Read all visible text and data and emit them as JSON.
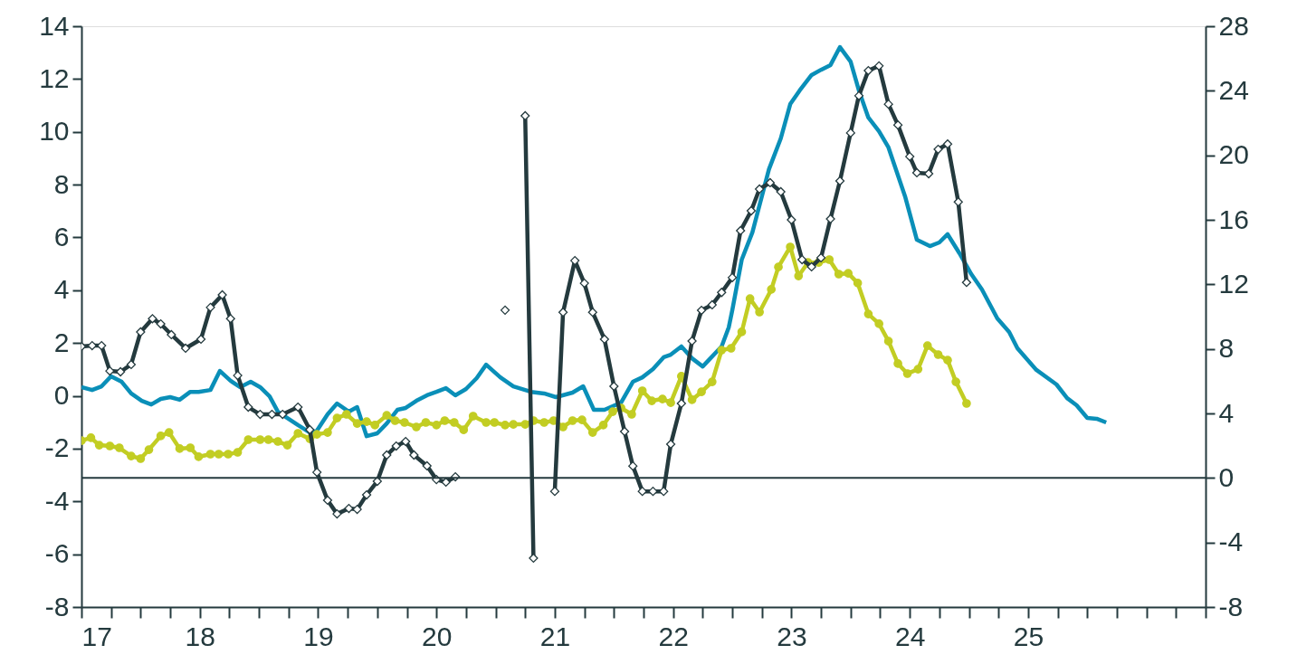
{
  "chart_data": {
    "type": "line",
    "xlim": [
      17,
      26.5
    ],
    "xticks": [
      17,
      {
        "value": 17.25,
        "label": null
      },
      {
        "value": 17.5,
        "label": null
      },
      {
        "value": 17.75,
        "label": null
      },
      18,
      {
        "value": 18.25,
        "label": null
      },
      {
        "value": 18.5,
        "label": null
      },
      {
        "value": 18.75,
        "label": null
      },
      19,
      {
        "value": 19.25,
        "label": null
      },
      {
        "value": 19.5,
        "label": null
      },
      {
        "value": 19.75,
        "label": null
      },
      20,
      {
        "value": 20.25,
        "label": null
      },
      {
        "value": 20.5,
        "label": null
      },
      {
        "value": 20.75,
        "label": null
      },
      21,
      {
        "value": 21.25,
        "label": null
      },
      {
        "value": 21.5,
        "label": null
      },
      {
        "value": 21.75,
        "label": null
      },
      22,
      {
        "value": 22.25,
        "label": null
      },
      {
        "value": 22.5,
        "label": null
      },
      {
        "value": 22.75,
        "label": null
      },
      23,
      {
        "value": 23.25,
        "label": null
      },
      {
        "value": 23.5,
        "label": null
      },
      {
        "value": 23.75,
        "label": null
      },
      24,
      {
        "value": 24.25,
        "label": null
      },
      {
        "value": 24.5,
        "label": null
      },
      {
        "value": 24.75,
        "label": null
      },
      25,
      {
        "value": 25.25,
        "label": null
      },
      {
        "value": 25.5,
        "label": null
      },
      {
        "value": 25.75,
        "label": null
      },
      {
        "value": 26,
        "label": null
      },
      {
        "value": 26.25,
        "label": null
      },
      {
        "value": 26.5,
        "label": null
      }
    ],
    "ylim": [
      -8,
      14
    ],
    "yticks": [
      -8,
      -6,
      -4,
      -2,
      0,
      2,
      4,
      6,
      8,
      10,
      12,
      14
    ],
    "y2lim": [
      -8,
      28
    ],
    "y2ticks": [
      -8,
      -4,
      0,
      4,
      8,
      12,
      16,
      20,
      24,
      28
    ],
    "grid": false,
    "line_style": "solid",
    "ref_lines": [
      {
        "axis": "y2",
        "value": 0,
        "color": "#243a3e"
      }
    ],
    "series": [
      {
        "color": "#0a8fb8",
        "marker": "none",
        "x": [
          17.0,
          17.09,
          17.17,
          17.25,
          17.34,
          17.42,
          17.51,
          17.59,
          17.67,
          17.75,
          17.83,
          17.92,
          17.99,
          18.09,
          18.17,
          18.26,
          18.34,
          18.43,
          18.51,
          18.59,
          18.66,
          18.74,
          18.83,
          18.93,
          18.99,
          19.08,
          19.16,
          19.26,
          19.33,
          19.41,
          19.5,
          19.58,
          19.67,
          19.74,
          19.83,
          19.92,
          20.0,
          20.08,
          20.16,
          20.25,
          20.34,
          20.42,
          20.54,
          20.65,
          20.8,
          20.91,
          21.01,
          21.15,
          21.24,
          21.33,
          21.42,
          21.56,
          21.66,
          21.74,
          21.83,
          21.92,
          21.98,
          22.07,
          22.16,
          22.25,
          22.41,
          22.47,
          22.5,
          22.58,
          22.67,
          22.81,
          22.91,
          22.99,
          23.07,
          23.17,
          23.25,
          23.33,
          23.41,
          23.5,
          23.57,
          23.65,
          23.74,
          23.82,
          23.96,
          24.06,
          24.17,
          24.25,
          24.32,
          24.42,
          24.52,
          24.61,
          24.74,
          24.84,
          24.91,
          25.07,
          25.24,
          25.33,
          25.41,
          25.5,
          25.58,
          25.66
        ],
        "values": [
          0.33,
          0.22,
          0.36,
          0.74,
          0.53,
          0.09,
          -0.19,
          -0.33,
          -0.12,
          -0.05,
          -0.15,
          0.15,
          0.15,
          0.22,
          0.94,
          0.57,
          0.33,
          0.53,
          0.33,
          -0.02,
          -0.6,
          -0.84,
          -1.11,
          -1.39,
          -1.32,
          -0.7,
          -0.29,
          -0.6,
          -0.43,
          -1.53,
          -1.42,
          -1.05,
          -0.53,
          -0.46,
          -0.19,
          0.02,
          0.15,
          0.29,
          0.02,
          0.26,
          0.67,
          1.18,
          0.7,
          0.36,
          0.15,
          0.09,
          -0.05,
          0.12,
          0.36,
          -0.53,
          -0.53,
          -0.26,
          0.53,
          0.7,
          1.01,
          1.46,
          1.56,
          1.87,
          1.42,
          1.11,
          1.87,
          2.59,
          3.24,
          5.16,
          6.19,
          8.58,
          9.75,
          11.05,
          11.57,
          12.15,
          12.35,
          12.53,
          13.21,
          12.66,
          11.57,
          10.54,
          10.02,
          9.41,
          7.56,
          5.91,
          5.67,
          5.81,
          6.12,
          5.4,
          4.61,
          4.03,
          2.93,
          2.42,
          1.8,
          0.98,
          0.43,
          -0.09,
          -0.36,
          -0.84,
          -0.87,
          -1.01
        ]
      },
      {
        "color": "#c2cd23",
        "marker": "circle",
        "x": [
          17.0,
          17.08,
          17.15,
          17.24,
          17.32,
          17.42,
          17.5,
          17.57,
          17.67,
          17.74,
          17.83,
          17.92,
          17.99,
          18.09,
          18.16,
          18.24,
          18.32,
          18.41,
          18.51,
          18.58,
          18.66,
          18.74,
          18.83,
          18.93,
          18.99,
          19.08,
          19.16,
          19.24,
          19.33,
          19.41,
          19.48,
          19.58,
          19.65,
          19.73,
          19.83,
          19.91,
          20.0,
          20.07,
          20.15,
          20.23,
          20.31,
          20.42,
          20.49,
          20.58,
          20.65,
          20.75,
          20.82,
          20.91,
          20.99,
          21.07,
          21.15,
          21.23,
          21.32,
          21.41,
          21.49,
          21.56,
          21.65,
          21.74,
          21.82,
          21.91,
          21.98,
          22.07,
          22.16,
          22.24,
          22.33,
          22.41,
          22.49,
          22.58,
          22.65,
          22.73,
          22.83,
          22.89,
          22.99,
          23.06,
          23.14,
          23.23,
          23.32,
          23.4,
          23.48,
          23.56,
          23.65,
          23.74,
          23.82,
          23.9,
          23.98,
          24.07,
          24.15,
          24.24,
          24.32,
          24.39,
          24.48
        ],
        "values": [
          -1.7,
          -1.59,
          -1.87,
          -1.9,
          -1.97,
          -2.28,
          -2.38,
          -2.04,
          -1.52,
          -1.39,
          -2.0,
          -1.97,
          -2.31,
          -2.21,
          -2.21,
          -2.21,
          -2.14,
          -1.66,
          -1.66,
          -1.66,
          -1.73,
          -1.87,
          -1.42,
          -1.63,
          -1.46,
          -1.39,
          -0.84,
          -0.7,
          -1.05,
          -0.98,
          -1.11,
          -0.74,
          -0.94,
          -1.01,
          -1.18,
          -1.01,
          -1.11,
          -0.94,
          -1.01,
          -1.29,
          -0.77,
          -1.01,
          -1.01,
          -1.11,
          -1.08,
          -1.08,
          -0.94,
          -1.01,
          -0.94,
          -1.18,
          -0.94,
          -0.91,
          -1.39,
          -1.11,
          -0.6,
          -0.46,
          -0.7,
          0.19,
          -0.19,
          -0.12,
          -0.26,
          0.74,
          -0.15,
          0.15,
          0.53,
          1.73,
          1.8,
          2.42,
          3.68,
          3.17,
          4.03,
          4.88,
          5.64,
          4.54,
          5.05,
          5.05,
          5.16,
          4.61,
          4.64,
          4.27,
          3.1,
          2.73,
          2.07,
          1.22,
          0.84,
          1.01,
          1.9,
          1.56,
          1.35,
          0.53,
          -0.29
        ]
      },
      {
        "color": "#243a3e",
        "marker": "diamond",
        "axis": "y2",
        "x": [
          17.0,
          17.09,
          17.17,
          17.24,
          17.33,
          17.42,
          17.5,
          17.6,
          17.67,
          17.76,
          17.88,
          18.01,
          18.09,
          18.19,
          18.26,
          18.32,
          18.41,
          18.51,
          18.61,
          18.7,
          18.83,
          18.93,
          18.99,
          19.08,
          19.16,
          19.26,
          19.33,
          19.41,
          19.5,
          19.58,
          19.66,
          19.74,
          19.81,
          19.92,
          20.0,
          20.08,
          20.16,
          20.25,
          20.33,
          20.42,
          20.5,
          20.58,
          20.66,
          20.75,
          20.82,
          20.91,
          21.0,
          21.07,
          21.17,
          21.25,
          21.32,
          21.42,
          21.5,
          21.59,
          21.66,
          21.74,
          21.83,
          21.92,
          21.98,
          22.07,
          22.16,
          22.24,
          22.33,
          22.41,
          22.5,
          22.57,
          22.66,
          22.73,
          22.82,
          22.91,
          23.0,
          23.09,
          23.17,
          23.25,
          23.33,
          23.41,
          23.5,
          23.57,
          23.65,
          23.74,
          23.82,
          23.9,
          24.0,
          24.06,
          24.16,
          24.24,
          24.32,
          24.41,
          24.48
        ],
        "values": [
          8.15,
          8.2,
          8.2,
          6.63,
          6.58,
          7.03,
          9.05,
          9.87,
          9.55,
          8.88,
          8.04,
          8.6,
          10.57,
          11.35,
          9.87,
          6.35,
          4.39,
          3.94,
          3.94,
          3.94,
          4.39,
          2.99,
          0.35,
          -1.38,
          -2.23,
          -1.89,
          -1.95,
          -1.05,
          -0.21,
          1.42,
          1.98,
          2.26,
          1.42,
          0.75,
          -0.1,
          -0.26,
          0.07,
          null,
          null,
          null,
          null,
          10.4,
          null,
          22.45,
          -4.97,
          null,
          -0.83,
          10.27,
          13.47,
          12.07,
          10.27,
          8.6,
          5.68,
          2.88,
          0.74,
          -0.83,
          -0.83,
          -0.83,
          2.09,
          4.62,
          8.49,
          10.39,
          10.73,
          11.5,
          12.42,
          15.33,
          16.56,
          17.91,
          18.3,
          17.74,
          16.0,
          13.53,
          13.09,
          13.65,
          16.06,
          18.41,
          21.39,
          23.69,
          25.25,
          25.54,
          23.17,
          21.88,
          19.92,
          18.92,
          18.86,
          20.37,
          20.7,
          17.11,
          12.12
        ]
      }
    ]
  }
}
